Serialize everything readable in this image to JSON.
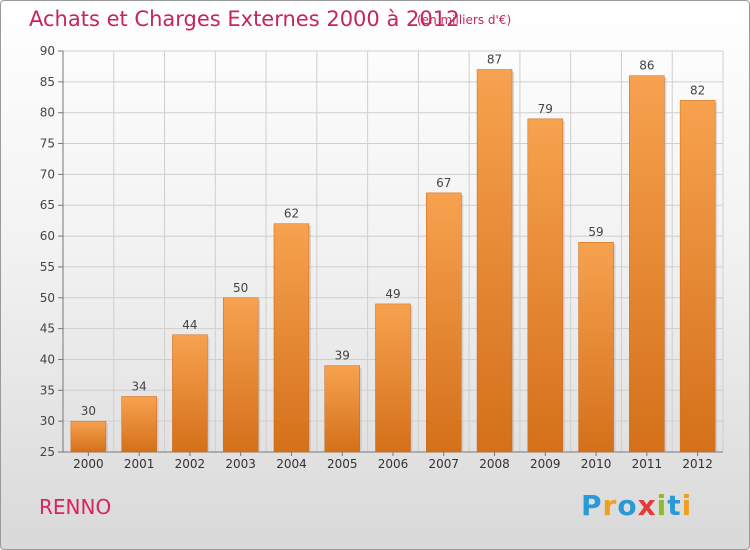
{
  "header": {
    "title": "Achats et Charges Externes 2000 à 2012",
    "subtitle": "(en milliers d'€)"
  },
  "footer": {
    "commune": "RENNO",
    "brand": "Proxiti"
  },
  "colors": {
    "bar_light": "#f7a24f",
    "bar_dark": "#d4701a",
    "title": "#c8245c",
    "grid": "#cfcfcf"
  },
  "chart_data": {
    "type": "bar",
    "title": "Achats et Charges Externes 2000 à 2012",
    "subtitle": "(en milliers d'€)",
    "categories": [
      "2000",
      "2001",
      "2002",
      "2003",
      "2004",
      "2005",
      "2006",
      "2007",
      "2008",
      "2009",
      "2010",
      "2011",
      "2012"
    ],
    "values": [
      30,
      34,
      44,
      50,
      62,
      39,
      49,
      67,
      87,
      79,
      59,
      86,
      82
    ],
    "ylim": [
      25,
      90
    ],
    "yticks": [
      25,
      30,
      35,
      40,
      45,
      50,
      55,
      60,
      65,
      70,
      75,
      80,
      85,
      90
    ],
    "grid": true,
    "data_labels": true
  }
}
